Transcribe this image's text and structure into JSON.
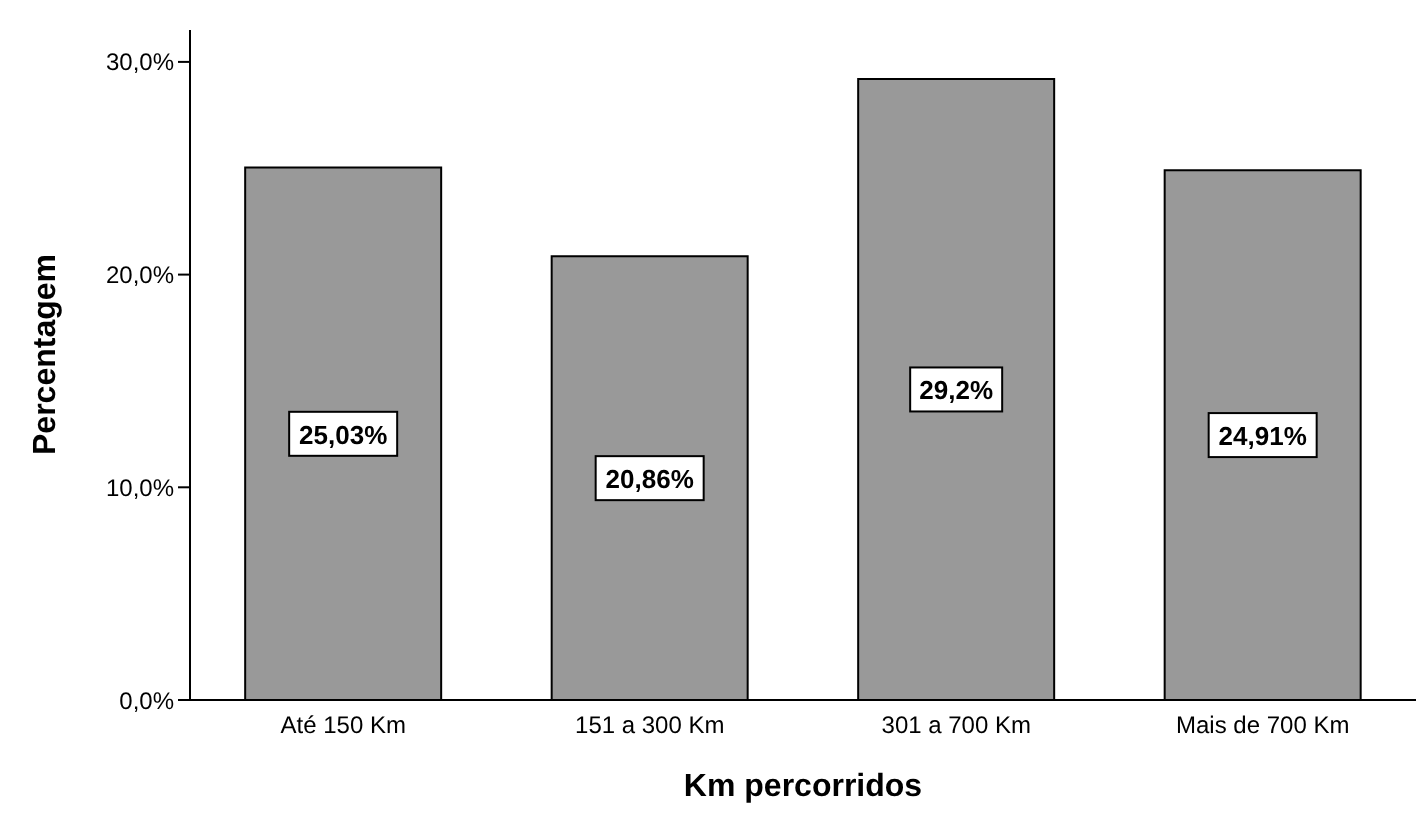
{
  "chart_data": {
    "type": "bar",
    "xlabel": "Km percorridos",
    "ylabel": "Percentagem",
    "categories": [
      "Até 150 Km",
      "151 a 300 Km",
      "301 a 700 Km",
      "Mais de 700 Km"
    ],
    "values": [
      25.03,
      20.86,
      29.2,
      24.91
    ],
    "color": "#999999",
    "value_labels": [
      "25,03%",
      "20,86%",
      "29,2%",
      "24,91%"
    ],
    "ylim": [
      0,
      31.5
    ],
    "yticks": [
      {
        "value": 0,
        "label": "0,0%"
      },
      {
        "value": 10,
        "label": "10,0%"
      },
      {
        "value": 20,
        "label": "20,0%"
      },
      {
        "value": 30,
        "label": "30,0%"
      }
    ],
    "grid": false
  }
}
